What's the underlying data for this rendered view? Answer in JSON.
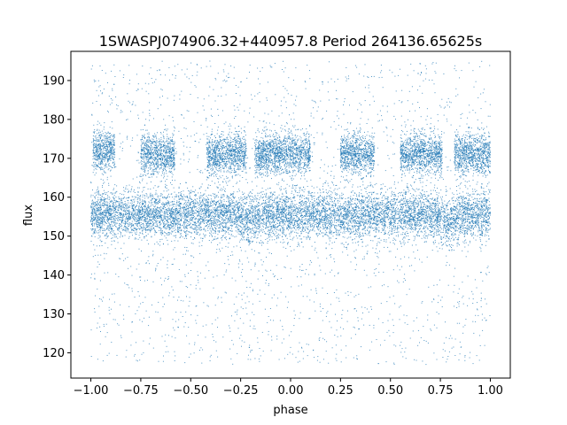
{
  "chart_data": {
    "type": "scatter",
    "title": "1SWASPJ074906.32+440957.8 Period 264136.65625s",
    "xlabel": "phase",
    "ylabel": "flux",
    "xlim": [
      -1.1,
      1.1
    ],
    "ylim": [
      113.5,
      197.5
    ],
    "xticks": [
      -1.0,
      -0.75,
      -0.5,
      -0.25,
      0.0,
      0.25,
      0.5,
      0.75,
      1.0
    ],
    "xtick_labels": [
      "−1.00",
      "−0.75",
      "−0.50",
      "−0.25",
      "0.00",
      "0.25",
      "0.50",
      "0.75",
      "1.00"
    ],
    "yticks": [
      120,
      130,
      140,
      150,
      160,
      170,
      180,
      190
    ],
    "ytick_labels": [
      "120",
      "130",
      "140",
      "150",
      "160",
      "170",
      "180",
      "190"
    ],
    "grid": false,
    "marker_color": "#1f77b4",
    "series": [
      {
        "description_of_bands": "dense main band",
        "values": [
          {
            "phase_range": [
              -1.0,
              1.0
            ],
            "flux_center": 155.5,
            "flux_spread": 3.0
          }
        ]
      },
      {
        "upper_band_clusters": [
          {
            "phase_range": [
              -0.99,
              -0.88
            ],
            "flux_center": 172
          },
          {
            "phase_range": [
              -0.75,
              -0.58
            ],
            "flux_center": 171
          },
          {
            "phase_range": [
              -0.42,
              -0.22
            ],
            "flux_center": 171
          },
          {
            "phase_range": [
              -0.18,
              0.1
            ],
            "flux_center": 171
          },
          {
            "phase_range": [
              0.25,
              0.42
            ],
            "flux_center": 171
          },
          {
            "phase_range": [
              0.55,
              0.76
            ],
            "flux_center": 171
          },
          {
            "phase_range": [
              0.82,
              1.0
            ],
            "flux_center": 171
          }
        ]
      }
    ]
  }
}
